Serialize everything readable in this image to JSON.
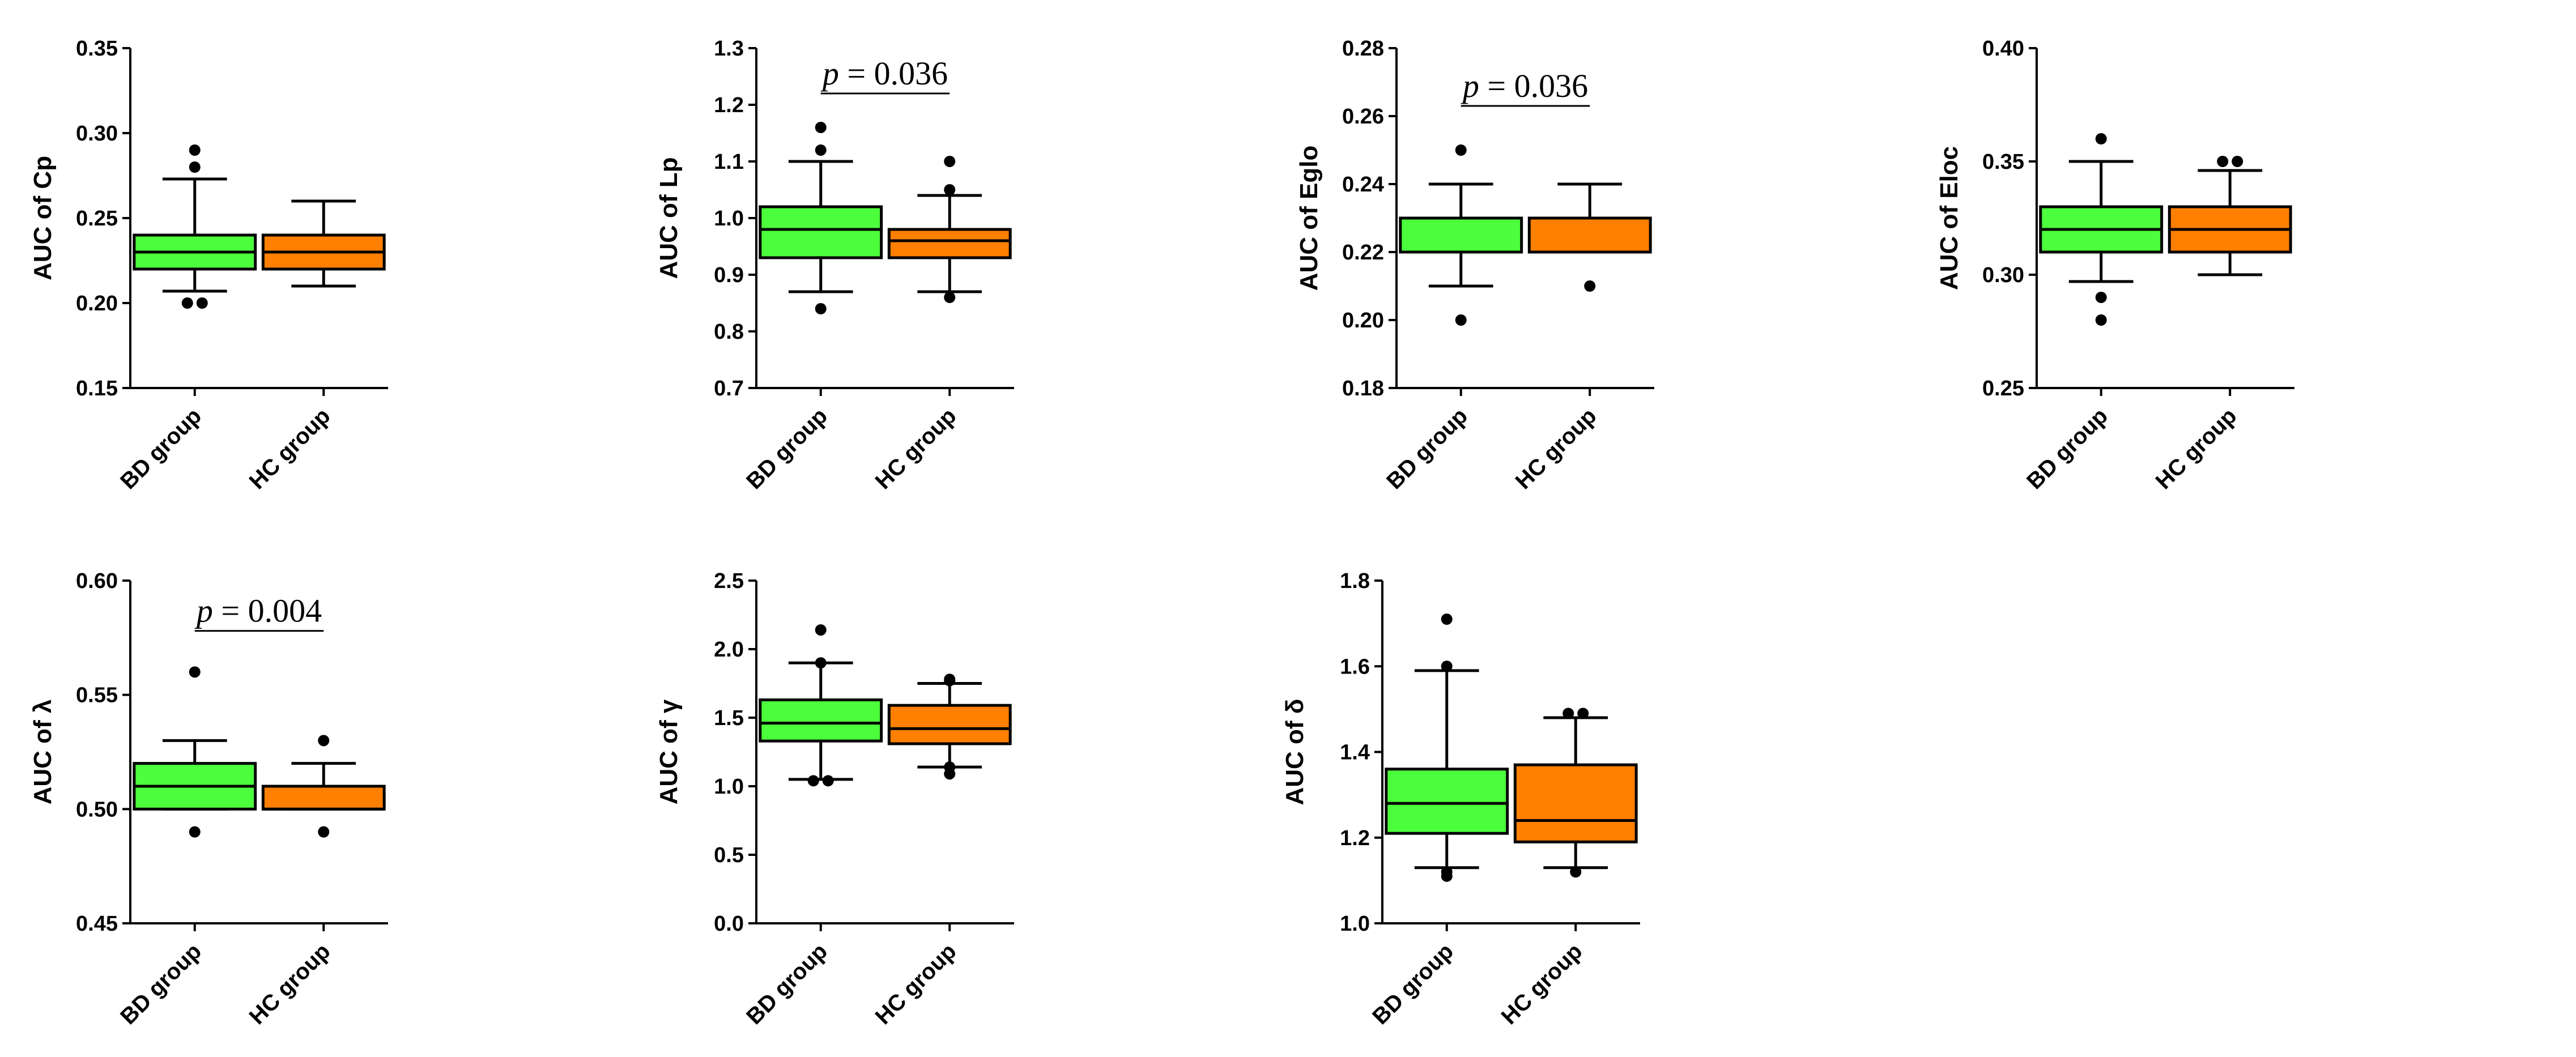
{
  "chart_data": [
    {
      "type": "box",
      "ylabel": "AUC of Cp",
      "ylim": [
        0.15,
        0.35
      ],
      "yticks": [
        "0.15",
        "0.20",
        "0.25",
        "0.30",
        "0.35"
      ],
      "categories": [
        "BD group",
        "HC group"
      ],
      "boxes": [
        {
          "name": "BD group",
          "color": "#4cff3c",
          "whisker_low": 0.207,
          "q1": 0.22,
          "median": 0.23,
          "q3": 0.24,
          "whisker_high": 0.273,
          "outliers": [
            0.29,
            0.28,
            0.2,
            0.2
          ]
        },
        {
          "name": "HC group",
          "color": "#ff7f00",
          "whisker_low": 0.21,
          "q1": 0.22,
          "median": 0.23,
          "q3": 0.24,
          "whisker_high": 0.26,
          "outliers": []
        }
      ],
      "annotation": null
    },
    {
      "type": "box",
      "ylabel": "AUC of Lp",
      "ylim": [
        0.7,
        1.3
      ],
      "yticks": [
        "0.7",
        "0.8",
        "0.9",
        "1.0",
        "1.1",
        "1.2",
        "1.3"
      ],
      "categories": [
        "BD group",
        "HC group"
      ],
      "boxes": [
        {
          "name": "BD group",
          "color": "#4cff3c",
          "whisker_low": 0.87,
          "q1": 0.93,
          "median": 0.98,
          "q3": 1.02,
          "whisker_high": 1.1,
          "outliers": [
            1.16,
            1.12,
            0.84
          ]
        },
        {
          "name": "HC group",
          "color": "#ff7f00",
          "whisker_low": 0.87,
          "q1": 0.93,
          "median": 0.96,
          "q3": 0.98,
          "whisker_high": 1.04,
          "outliers": [
            1.1,
            1.05,
            0.86
          ]
        }
      ],
      "annotation": {
        "p_symbol": "p",
        "text": " = 0.036",
        "y": 1.22
      }
    },
    {
      "type": "box",
      "ylabel": "AUC of Eglo",
      "ylim": [
        0.18,
        0.28
      ],
      "yticks": [
        "0.18",
        "0.20",
        "0.22",
        "0.24",
        "0.26",
        "0.28"
      ],
      "categories": [
        "BD group",
        "HC group"
      ],
      "boxes": [
        {
          "name": "BD group",
          "color": "#4cff3c",
          "whisker_low": 0.21,
          "q1": 0.22,
          "median": 0.22,
          "q3": 0.23,
          "whisker_high": 0.24,
          "outliers": [
            0.25,
            0.2
          ]
        },
        {
          "name": "HC group",
          "color": "#ff7f00",
          "whisker_low": 0.22,
          "q1": 0.22,
          "median": 0.22,
          "q3": 0.23,
          "whisker_high": 0.24,
          "outliers": [
            0.21
          ]
        }
      ],
      "annotation": {
        "p_symbol": "p",
        "text": " = 0.036",
        "y": 0.263
      }
    },
    {
      "type": "box",
      "ylabel": "AUC of Eloc",
      "ylim": [
        0.25,
        0.4
      ],
      "yticks": [
        "0.25",
        "0.30",
        "0.35",
        "0.40"
      ],
      "categories": [
        "BD group",
        "HC group"
      ],
      "boxes": [
        {
          "name": "BD group",
          "color": "#4cff3c",
          "whisker_low": 0.297,
          "q1": 0.31,
          "median": 0.32,
          "q3": 0.33,
          "whisker_high": 0.35,
          "outliers": [
            0.36,
            0.29,
            0.28
          ]
        },
        {
          "name": "HC group",
          "color": "#ff7f00",
          "whisker_low": 0.3,
          "q1": 0.31,
          "median": 0.32,
          "q3": 0.33,
          "whisker_high": 0.346,
          "outliers": [
            0.35,
            0.35
          ]
        }
      ],
      "annotation": null
    },
    {
      "type": "box",
      "ylabel": "AUC of λ",
      "ylim": [
        0.45,
        0.6
      ],
      "yticks": [
        "0.45",
        "0.50",
        "0.55",
        "0.60"
      ],
      "categories": [
        "BD group",
        "HC group"
      ],
      "boxes": [
        {
          "name": "BD group",
          "color": "#4cff3c",
          "whisker_low": 0.5,
          "q1": 0.5,
          "median": 0.51,
          "q3": 0.52,
          "whisker_high": 0.53,
          "outliers": [
            0.56,
            0.49
          ]
        },
        {
          "name": "HC group",
          "color": "#ff7f00",
          "whisker_low": 0.5,
          "q1": 0.5,
          "median": 0.5,
          "q3": 0.51,
          "whisker_high": 0.52,
          "outliers": [
            0.53,
            0.49
          ]
        }
      ],
      "annotation": {
        "p_symbol": "p",
        "text": " = 0.004",
        "y": 0.578
      }
    },
    {
      "type": "box",
      "ylabel": "AUC of γ",
      "ylim": [
        0.0,
        2.5
      ],
      "yticks": [
        "0.0",
        "0.5",
        "1.0",
        "1.5",
        "2.0",
        "2.5"
      ],
      "categories": [
        "BD group",
        "HC group"
      ],
      "boxes": [
        {
          "name": "BD group",
          "color": "#4cff3c",
          "whisker_low": 1.05,
          "q1": 1.33,
          "median": 1.46,
          "q3": 1.63,
          "whisker_high": 1.9,
          "outliers": [
            2.14,
            1.9,
            1.04,
            1.04
          ]
        },
        {
          "name": "HC group",
          "color": "#ff7f00",
          "whisker_low": 1.14,
          "q1": 1.31,
          "median": 1.42,
          "q3": 1.59,
          "whisker_high": 1.75,
          "outliers": [
            1.78,
            1.77,
            1.09,
            1.14
          ]
        }
      ],
      "annotation": null
    },
    {
      "type": "box",
      "ylabel": "AUC of δ",
      "ylim": [
        1.0,
        1.8
      ],
      "yticks": [
        "1.0",
        "1.2",
        "1.4",
        "1.6",
        "1.8"
      ],
      "categories": [
        "BD group",
        "HC group"
      ],
      "boxes": [
        {
          "name": "BD group",
          "color": "#4cff3c",
          "whisker_low": 1.13,
          "q1": 1.21,
          "median": 1.28,
          "q3": 1.36,
          "whisker_high": 1.59,
          "outliers": [
            1.71,
            1.6,
            1.11,
            1.12
          ]
        },
        {
          "name": "HC group",
          "color": "#ff7f00",
          "whisker_low": 1.13,
          "q1": 1.19,
          "median": 1.24,
          "q3": 1.37,
          "whisker_high": 1.48,
          "outliers": [
            1.49,
            1.49,
            1.12
          ]
        }
      ],
      "annotation": null
    }
  ]
}
